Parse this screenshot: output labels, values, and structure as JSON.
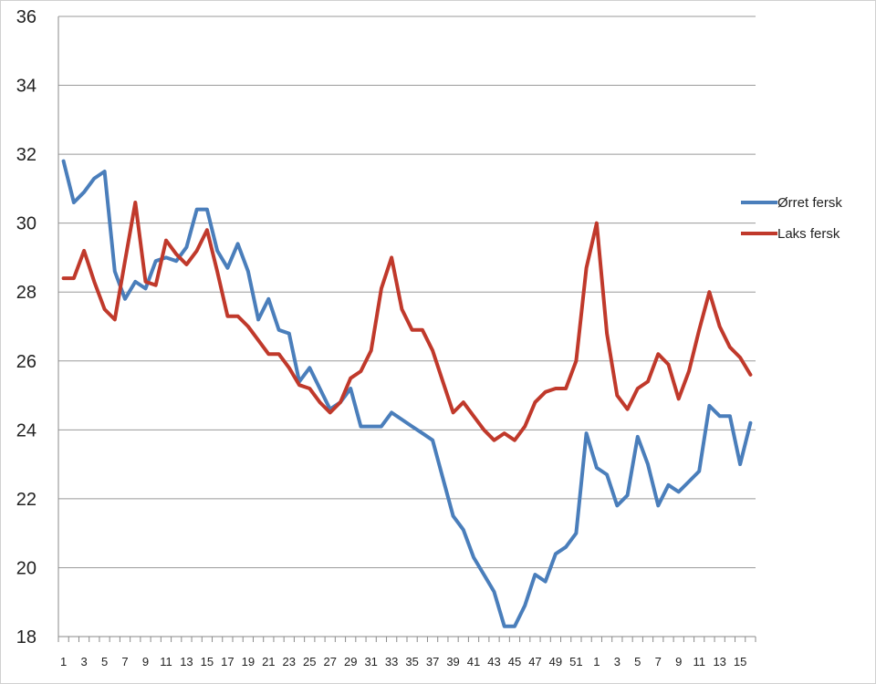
{
  "chart_data": {
    "type": "line",
    "title": "",
    "xlabel": "",
    "ylabel": "",
    "ylim": [
      18,
      36
    ],
    "yticks": [
      18,
      20,
      22,
      24,
      26,
      28,
      30,
      32,
      34,
      36
    ],
    "grid": "horizontal",
    "legend_position": "right",
    "x": [
      1,
      2,
      3,
      4,
      5,
      6,
      7,
      8,
      9,
      10,
      11,
      12,
      13,
      14,
      15,
      16,
      17,
      18,
      19,
      20,
      21,
      22,
      23,
      24,
      25,
      26,
      27,
      28,
      29,
      30,
      31,
      32,
      33,
      34,
      35,
      36,
      37,
      38,
      39,
      40,
      41,
      42,
      43,
      44,
      45,
      46,
      47,
      48,
      49,
      50,
      51,
      52,
      1,
      2,
      3,
      4,
      5,
      6,
      7,
      8,
      9,
      10,
      11,
      12,
      13,
      14,
      15,
      16
    ],
    "x_tick_labels": [
      "1",
      "3",
      "5",
      "7",
      "9",
      "11",
      "13",
      "15",
      "17",
      "19",
      "21",
      "23",
      "25",
      "27",
      "29",
      "31",
      "33",
      "35",
      "37",
      "39",
      "41",
      "43",
      "45",
      "47",
      "49",
      "51",
      "1",
      "3",
      "5",
      "7",
      "9",
      "11",
      "13",
      "15"
    ],
    "series": [
      {
        "name": "Ørret fersk",
        "color": "#4a7ebb",
        "values": [
          31.8,
          30.6,
          30.9,
          31.3,
          31.5,
          28.6,
          27.8,
          28.3,
          28.1,
          28.9,
          29.0,
          28.9,
          29.3,
          30.4,
          30.4,
          29.2,
          28.7,
          29.4,
          28.6,
          27.2,
          27.8,
          26.9,
          26.8,
          25.4,
          25.8,
          25.2,
          24.6,
          24.8,
          25.2,
          24.1,
          24.1,
          24.1,
          24.5,
          24.3,
          24.1,
          23.9,
          23.7,
          22.6,
          21.5,
          21.1,
          20.3,
          19.8,
          19.3,
          18.3,
          18.3,
          18.9,
          19.8,
          19.6,
          20.4,
          20.6,
          21.0,
          23.9,
          22.9,
          22.7,
          21.8,
          22.1,
          23.8,
          23.0,
          21.8,
          22.4,
          22.2,
          22.5,
          22.8,
          24.7,
          24.4,
          24.4,
          23.0,
          24.2
        ]
      },
      {
        "name": "Laks fersk",
        "color": "#c0392b",
        "values": [
          28.4,
          28.4,
          29.2,
          28.3,
          27.5,
          27.2,
          28.9,
          30.6,
          28.3,
          28.2,
          29.5,
          29.1,
          28.8,
          29.2,
          29.8,
          28.6,
          27.3,
          27.3,
          27.0,
          26.6,
          26.2,
          26.2,
          25.8,
          25.3,
          25.2,
          24.8,
          24.5,
          24.8,
          25.5,
          25.7,
          26.3,
          28.1,
          29.0,
          27.5,
          26.9,
          26.9,
          26.3,
          25.4,
          24.5,
          24.8,
          24.4,
          24.0,
          23.7,
          23.9,
          23.7,
          24.1,
          24.8,
          25.1,
          25.2,
          25.2,
          26.0,
          28.7,
          30.0,
          26.8,
          25.0,
          24.6,
          25.2,
          25.4,
          26.2,
          25.9,
          24.9,
          25.7,
          26.9,
          28.0,
          27.0,
          26.4,
          26.1,
          25.6
        ]
      }
    ]
  }
}
